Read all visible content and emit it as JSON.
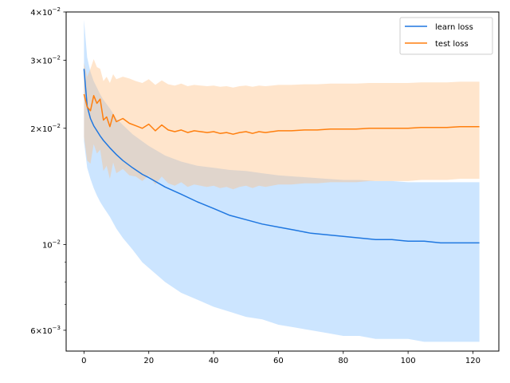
{
  "chart_data": {
    "type": "line",
    "title": "",
    "xlabel": "",
    "ylabel": "",
    "x_range": [
      -5.5,
      128
    ],
    "y_range": [
      0.0053,
      0.04
    ],
    "y_scale": "log",
    "grid": false,
    "legend_position": "top-right",
    "x_ticks": [
      0,
      20,
      40,
      60,
      80,
      100,
      120
    ],
    "x_tick_labels": [
      "0",
      "20",
      "40",
      "60",
      "80",
      "100",
      "120"
    ],
    "y_ticks": [
      {
        "value": 0.006,
        "mantissa": "6",
        "exponent": "−3"
      },
      {
        "value": 0.01,
        "mantissa": "10",
        "exponent": "−2"
      },
      {
        "value": 0.02,
        "mantissa": "2",
        "exponent": "−2"
      },
      {
        "value": 0.03,
        "mantissa": "3",
        "exponent": "−2"
      },
      {
        "value": 0.04,
        "mantissa": "4",
        "exponent": "−2"
      }
    ],
    "y_minor_ticks": [
      0.007,
      0.008,
      0.009
    ],
    "series": [
      {
        "name": "learn loss",
        "color": "#1f77e0",
        "band_color": "#7fbfff",
        "x": [
          0,
          1,
          2,
          3,
          4,
          5,
          6,
          8,
          10,
          12,
          15,
          18,
          20,
          25,
          30,
          35,
          40,
          45,
          50,
          55,
          60,
          65,
          70,
          75,
          80,
          85,
          90,
          95,
          100,
          105,
          110,
          115,
          120,
          122
        ],
        "y": [
          0.0285,
          0.0228,
          0.0212,
          0.0203,
          0.0197,
          0.0191,
          0.0186,
          0.0178,
          0.0171,
          0.0165,
          0.0158,
          0.0152,
          0.0149,
          0.0141,
          0.0135,
          0.0129,
          0.0124,
          0.0119,
          0.0116,
          0.0113,
          0.0111,
          0.0109,
          0.0107,
          0.0106,
          0.0105,
          0.0104,
          0.0103,
          0.0103,
          0.0102,
          0.0102,
          0.0101,
          0.0101,
          0.0101,
          0.0101
        ],
        "upper": [
          0.0382,
          0.0305,
          0.028,
          0.0265,
          0.0255,
          0.0245,
          0.0237,
          0.0225,
          0.0212,
          0.0204,
          0.0193,
          0.0185,
          0.018,
          0.017,
          0.0164,
          0.016,
          0.0158,
          0.0156,
          0.0155,
          0.0153,
          0.0151,
          0.015,
          0.0149,
          0.0148,
          0.0147,
          0.0147,
          0.0146,
          0.0146,
          0.0145,
          0.0145,
          0.0145,
          0.0145,
          0.0145,
          0.0145
        ],
        "lower": [
          0.0185,
          0.0158,
          0.0148,
          0.014,
          0.0134,
          0.0129,
          0.0125,
          0.0118,
          0.011,
          0.0104,
          0.0097,
          0.009,
          0.0087,
          0.008,
          0.0075,
          0.0072,
          0.0069,
          0.0067,
          0.0065,
          0.0064,
          0.0062,
          0.0061,
          0.006,
          0.0059,
          0.0058,
          0.0058,
          0.0057,
          0.0057,
          0.0057,
          0.0056,
          0.0056,
          0.0056,
          0.0056,
          0.0056
        ]
      },
      {
        "name": "test loss",
        "color": "#ff7f0e",
        "band_color": "#ffbf80",
        "x": [
          0,
          1,
          2,
          3,
          4,
          5,
          6,
          7,
          8,
          9,
          10,
          12,
          14,
          16,
          18,
          20,
          22,
          24,
          26,
          28,
          30,
          32,
          34,
          36,
          38,
          40,
          42,
          44,
          46,
          48,
          50,
          52,
          54,
          56,
          58,
          60,
          64,
          68,
          72,
          76,
          80,
          84,
          88,
          92,
          96,
          100,
          104,
          108,
          112,
          116,
          120,
          122
        ],
        "y": [
          0.0245,
          0.0227,
          0.0222,
          0.0243,
          0.0232,
          0.0238,
          0.021,
          0.0214,
          0.0202,
          0.0217,
          0.0208,
          0.0212,
          0.0206,
          0.0203,
          0.02,
          0.0205,
          0.0197,
          0.0204,
          0.0198,
          0.0196,
          0.0198,
          0.0195,
          0.0197,
          0.0196,
          0.0195,
          0.0196,
          0.0194,
          0.0195,
          0.0193,
          0.0195,
          0.0196,
          0.0194,
          0.0196,
          0.0195,
          0.0196,
          0.0197,
          0.0197,
          0.0198,
          0.0198,
          0.0199,
          0.0199,
          0.0199,
          0.02,
          0.02,
          0.02,
          0.02,
          0.0201,
          0.0201,
          0.0201,
          0.0202,
          0.0202,
          0.0202
        ],
        "upper": [
          0.0295,
          0.0272,
          0.0285,
          0.0302,
          0.0288,
          0.0285,
          0.0265,
          0.0272,
          0.0262,
          0.0276,
          0.0268,
          0.0272,
          0.0269,
          0.0265,
          0.0262,
          0.0268,
          0.0259,
          0.0266,
          0.026,
          0.0258,
          0.0261,
          0.0257,
          0.0259,
          0.0258,
          0.0257,
          0.0258,
          0.0256,
          0.0257,
          0.0255,
          0.0257,
          0.0258,
          0.0256,
          0.0258,
          0.0257,
          0.0258,
          0.0259,
          0.0259,
          0.026,
          0.026,
          0.0261,
          0.0261,
          0.0261,
          0.0262,
          0.0262,
          0.0262,
          0.0262,
          0.0263,
          0.0263,
          0.0263,
          0.0264,
          0.0264,
          0.0264
        ],
        "lower": [
          0.019,
          0.0165,
          0.0162,
          0.0182,
          0.0172,
          0.0176,
          0.0155,
          0.016,
          0.0148,
          0.0163,
          0.0153,
          0.0157,
          0.0151,
          0.015,
          0.0146,
          0.0151,
          0.0143,
          0.015,
          0.0144,
          0.0142,
          0.0145,
          0.0141,
          0.0143,
          0.0142,
          0.0141,
          0.0142,
          0.014,
          0.0141,
          0.0139,
          0.0141,
          0.0142,
          0.014,
          0.0142,
          0.0141,
          0.0142,
          0.0143,
          0.0143,
          0.0144,
          0.0144,
          0.0145,
          0.0145,
          0.0145,
          0.0146,
          0.0146,
          0.0146,
          0.0146,
          0.0147,
          0.0147,
          0.0147,
          0.0148,
          0.0148,
          0.0148
        ]
      }
    ]
  }
}
